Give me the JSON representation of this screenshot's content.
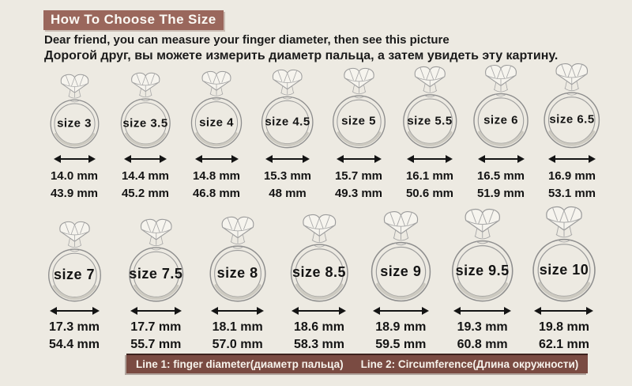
{
  "page": {
    "background": "#edeae2"
  },
  "header": {
    "title": "How To Choose The Size",
    "title_bg": "#9a675c",
    "subtitle_en": "Dear friend, you can measure your finger diameter, then see this picture",
    "subtitle_ru": "Дорогой друг, вы можете измерить диаметр пальца, а затем увидеть эту картину."
  },
  "legend": {
    "bg": "#7a4b42",
    "line1": "Line 1: finger diameter(диаметр пальца)",
    "line2": "Line 2: Circumference(Длина окружности)"
  },
  "rows": [
    {
      "rings": [
        {
          "size_label": "size 3",
          "diameter": "14.0 mm",
          "circumference": "43.9 mm"
        },
        {
          "size_label": "size 3.5",
          "diameter": "14.4 mm",
          "circumference": "45.2 mm"
        },
        {
          "size_label": "size 4",
          "diameter": "14.8 mm",
          "circumference": "46.8 mm"
        },
        {
          "size_label": "size 4.5",
          "diameter": "15.3 mm",
          "circumference": "48 mm"
        },
        {
          "size_label": "size 5",
          "diameter": "15.7 mm",
          "circumference": "49.3 mm"
        },
        {
          "size_label": "size 5.5",
          "diameter": "16.1 mm",
          "circumference": "50.6 mm"
        },
        {
          "size_label": "size 6",
          "diameter": "16.5 mm",
          "circumference": "51.9 mm"
        },
        {
          "size_label": "size 6.5",
          "diameter": "16.9 mm",
          "circumference": "53.1 mm"
        }
      ]
    },
    {
      "rings": [
        {
          "size_label": "size 7",
          "diameter": "17.3 mm",
          "circumference": "54.4 mm"
        },
        {
          "size_label": "size 7.5",
          "diameter": "17.7 mm",
          "circumference": "55.7 mm"
        },
        {
          "size_label": "size 8",
          "diameter": "18.1 mm",
          "circumference": "57.0 mm"
        },
        {
          "size_label": "size 8.5",
          "diameter": "18.6 mm",
          "circumference": "58.3 mm"
        },
        {
          "size_label": "size 9",
          "diameter": "18.9 mm",
          "circumference": "59.5 mm"
        },
        {
          "size_label": "size 9.5",
          "diameter": "19.3 mm",
          "circumference": "60.8 mm"
        },
        {
          "size_label": "size 10",
          "diameter": "19.8 mm",
          "circumference": "62.1 mm"
        }
      ]
    }
  ]
}
